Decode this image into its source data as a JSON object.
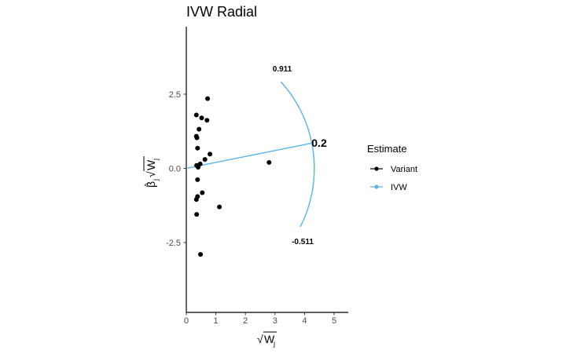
{
  "chart_data": {
    "type": "scatter",
    "title": "IVW Radial",
    "xlim": [
      0,
      5.5
    ],
    "ylim": [
      -4.9,
      4.9
    ],
    "x_ticks": [
      0,
      1,
      2,
      3,
      4,
      5
    ],
    "y_ticks": [
      -2.5,
      0.0,
      2.5
    ],
    "x_tick_labels": [
      "0",
      "1",
      "2",
      "3",
      "4",
      "5"
    ],
    "y_tick_labels": [
      "-2.5",
      "0.0",
      "2.5"
    ],
    "grid": false,
    "legend_position": "right",
    "legend_title": "Estimate",
    "series": [
      {
        "name": "Variant",
        "color": "#000000",
        "points": [
          [
            0.72,
            2.35
          ],
          [
            0.34,
            1.8
          ],
          [
            0.52,
            1.7
          ],
          [
            0.7,
            1.62
          ],
          [
            0.43,
            1.32
          ],
          [
            0.34,
            1.08
          ],
          [
            0.36,
            1.03
          ],
          [
            0.38,
            0.68
          ],
          [
            0.8,
            0.48
          ],
          [
            0.63,
            0.3
          ],
          [
            0.47,
            0.15
          ],
          [
            0.35,
            0.1
          ],
          [
            0.4,
            0.04
          ],
          [
            2.8,
            0.2
          ],
          [
            0.38,
            -0.38
          ],
          [
            0.54,
            -0.82
          ],
          [
            0.38,
            -0.95
          ],
          [
            0.34,
            -1.05
          ],
          [
            1.12,
            -1.3
          ],
          [
            0.35,
            -1.55
          ],
          [
            0.48,
            -2.9
          ]
        ]
      },
      {
        "name": "IVW",
        "color": "#56B4E9",
        "slope": 0.2,
        "line_x_end": 4.25,
        "arc_radius": 4.33,
        "arc_from_slope": -0.511,
        "arc_to_slope": 0.911
      }
    ],
    "annotations": {
      "upper": "0.911",
      "lower": "-0.511",
      "estimate": "0.2"
    }
  },
  "axes": {
    "x_prefix": "√",
    "x_main": "W",
    "x_sub": "j",
    "y_hat": "^",
    "y_beta": "β",
    "y_sub": "j",
    "y_sqrt": "√",
    "y_w": "W",
    "y_w_sub": "j"
  }
}
